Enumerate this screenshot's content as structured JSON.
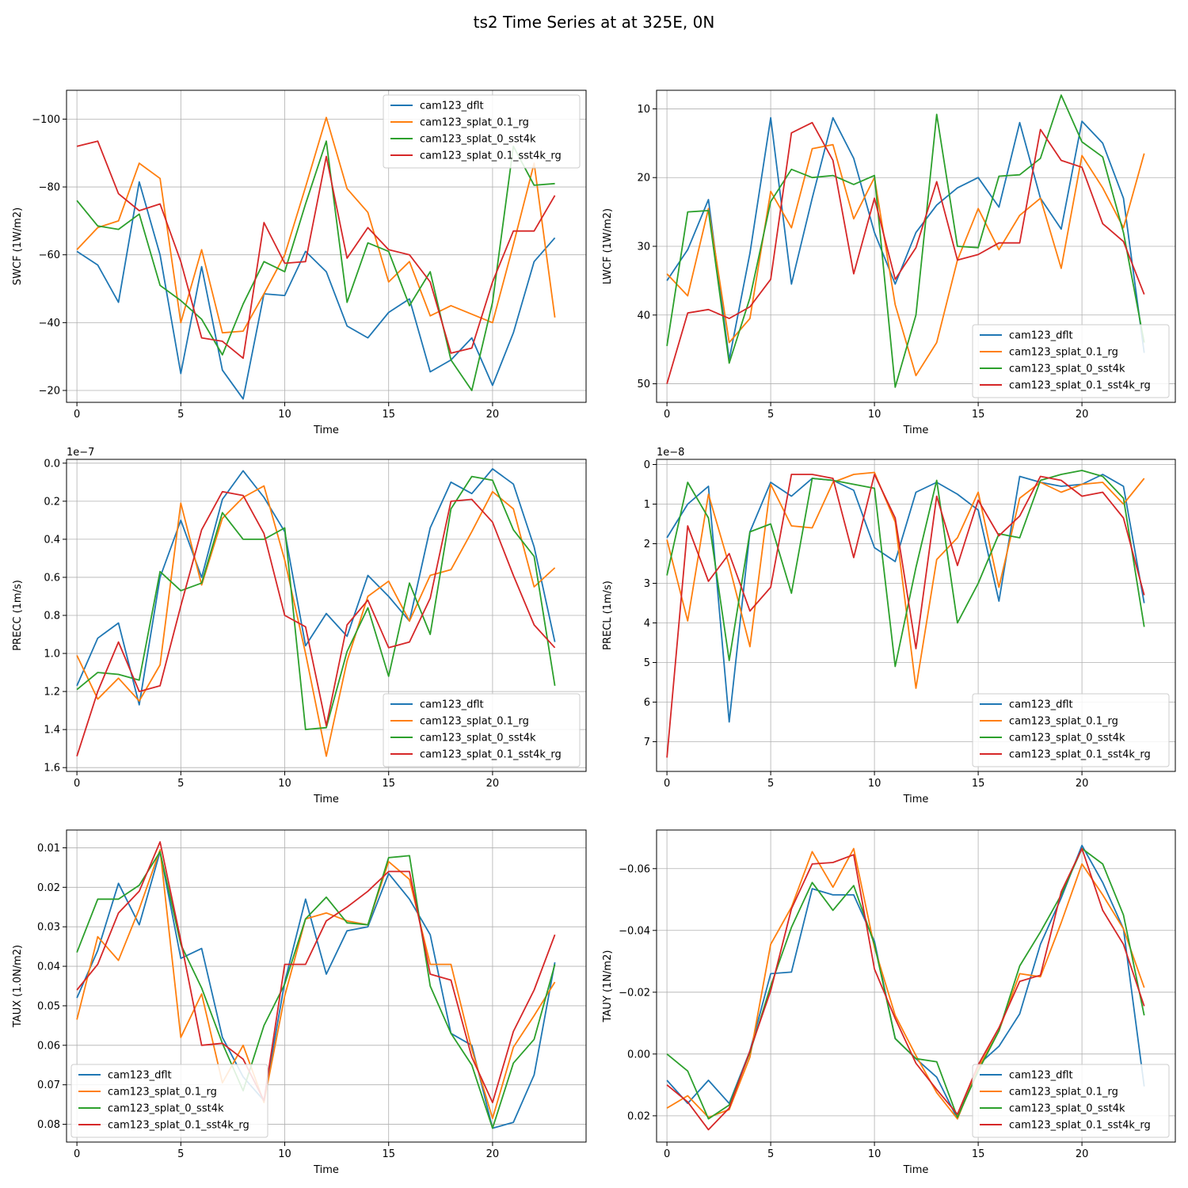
{
  "title": "ts2 Time Series at at 325E, 0N",
  "legend_labels": [
    "cam123_dflt",
    "cam123_splat_0.1_rg",
    "cam123_splat_0_sst4k",
    "cam123_splat_0.1_sst4k_rg"
  ],
  "colors": [
    "#1f77b4",
    "#ff7f0e",
    "#2ca02c",
    "#d62728"
  ],
  "chart_data": [
    {
      "type": "line",
      "xlabel": "Time",
      "ylabel": "SWCF (1W/m2)",
      "xlim": [
        -0.5,
        24.5
      ],
      "ylim": [
        -16.5,
        -108.5
      ],
      "inverted_y": true,
      "multiplier": "",
      "xticks": [
        0,
        5,
        10,
        15,
        20
      ],
      "yticks": [
        -100,
        -80,
        -60,
        -40,
        -20
      ],
      "yticklabels": [
        "−100",
        "−80",
        "−60",
        "−40",
        "−20"
      ],
      "grid": true,
      "legend_position": "upper right",
      "x": [
        0,
        1,
        2,
        3,
        4,
        5,
        6,
        7,
        8,
        9,
        10,
        11,
        12,
        13,
        14,
        15,
        16,
        17,
        18,
        19,
        20,
        21,
        22,
        23
      ],
      "series": [
        {
          "name": "cam123_dflt",
          "values": [
            -61,
            -57,
            -46,
            -81.5,
            -60,
            -25,
            -56.5,
            -26,
            -17.5,
            -48.5,
            -48,
            -61,
            -55,
            -39,
            -35.5,
            -43,
            -47,
            -25.5,
            -29,
            -35.5,
            -21.5,
            -37,
            -58,
            -65
          ]
        },
        {
          "name": "cam123_splat_0.1_rg",
          "values": [
            -61.5,
            -68,
            -70,
            -87,
            -82.5,
            -40,
            -61.5,
            -37,
            -37.5,
            -48.5,
            -60,
            -80,
            -100.5,
            -79.5,
            -72.5,
            -52,
            -58,
            -42,
            -45,
            -42.5,
            -40,
            -63,
            -87,
            -41.5
          ]
        },
        {
          "name": "cam123_splat_0_sst4k",
          "values": [
            -76,
            -68.5,
            -67.5,
            -72,
            -51,
            -46.5,
            -41,
            -30.5,
            -45.5,
            -58,
            -55,
            -75,
            -93.5,
            -46,
            -63.5,
            -61,
            -45,
            -55,
            -29,
            -20,
            -46,
            -92,
            -80.5,
            -81
          ]
        },
        {
          "name": "cam123_splat_0.1_sst4k_rg",
          "values": [
            -92,
            -93.5,
            -78,
            -73,
            -75,
            -58,
            -35.5,
            -34.5,
            -29.5,
            -69.5,
            -57.5,
            -58,
            -89,
            -59,
            -68,
            -61.5,
            -60,
            -52,
            -31,
            -32.5,
            -52,
            -67,
            -67,
            -77.5
          ]
        }
      ]
    },
    {
      "type": "line",
      "xlabel": "Time",
      "ylabel": "LWCF (1W/m2)",
      "xlim": [
        -0.5,
        24.5
      ],
      "ylim": [
        52.7,
        7.3
      ],
      "inverted_y": true,
      "multiplier": "",
      "xticks": [
        0,
        5,
        10,
        15,
        20
      ],
      "yticks": [
        10,
        20,
        30,
        40,
        50
      ],
      "yticklabels": [
        "10",
        "20",
        "30",
        "40",
        "50"
      ],
      "grid": true,
      "legend_position": "lower right",
      "x": [
        0,
        1,
        2,
        3,
        4,
        5,
        6,
        7,
        8,
        9,
        10,
        11,
        12,
        13,
        14,
        15,
        16,
        17,
        18,
        19,
        20,
        21,
        22,
        23
      ],
      "series": [
        {
          "name": "cam123_dflt",
          "values": [
            35,
            30.5,
            23.2,
            46.5,
            31,
            11.3,
            35.5,
            23,
            11.3,
            17.2,
            28,
            35.5,
            28,
            24,
            21.5,
            20,
            24.3,
            12,
            23,
            27.5,
            11.8,
            15,
            23,
            45.5
          ]
        },
        {
          "name": "cam123_splat_0.1_rg",
          "values": [
            34,
            37.2,
            24.5,
            44,
            40.5,
            22,
            27.3,
            15.8,
            15.2,
            26,
            20,
            38.5,
            48.8,
            44,
            32,
            24.5,
            30.5,
            25.5,
            23,
            33.2,
            16.8,
            21.5,
            27.3,
            16.5
          ]
        },
        {
          "name": "cam123_splat_0_sst4k",
          "values": [
            44.5,
            25,
            24.8,
            47,
            37.5,
            23.5,
            18.8,
            20,
            19.7,
            21,
            19.7,
            50.5,
            40,
            10.8,
            30,
            30.2,
            19.8,
            19.6,
            17.2,
            8,
            14.8,
            17,
            28,
            44
          ]
        },
        {
          "name": "cam123_splat_0.1_sst4k_rg",
          "values": [
            50,
            39.7,
            39.2,
            40.5,
            38.8,
            34.8,
            13.5,
            12,
            17.5,
            34,
            23,
            34.8,
            30.2,
            20.6,
            32,
            31.2,
            29.5,
            29.5,
            13,
            17.5,
            18.5,
            26.7,
            29.3,
            37
          ]
        }
      ]
    },
    {
      "type": "line",
      "xlabel": "Time",
      "ylabel": "PRECC (1m/s)",
      "xlim": [
        -0.5,
        24.5
      ],
      "ylim": [
        1.62,
        -0.02
      ],
      "inverted_y": true,
      "multiplier": "1e−7",
      "xticks": [
        0,
        5,
        10,
        15,
        20
      ],
      "yticks": [
        0,
        0.2,
        0.4,
        0.6,
        0.8,
        1.0,
        1.2,
        1.4,
        1.6
      ],
      "yticklabels": [
        "0.0",
        "0.2",
        "0.4",
        "0.6",
        "0.8",
        "1.0",
        "1.2",
        "1.4",
        "1.6"
      ],
      "grid": true,
      "legend_position": "lower right",
      "x": [
        0,
        1,
        2,
        3,
        4,
        5,
        6,
        7,
        8,
        9,
        10,
        11,
        12,
        13,
        14,
        15,
        16,
        17,
        18,
        19,
        20,
        21,
        22,
        23
      ],
      "series": [
        {
          "name": "cam123_dflt",
          "values": [
            1.17,
            0.92,
            0.84,
            1.27,
            0.6,
            0.3,
            0.6,
            0.19,
            0.04,
            0.18,
            0.36,
            0.96,
            0.79,
            0.91,
            0.59,
            0.7,
            0.83,
            0.34,
            0.1,
            0.16,
            0.03,
            0.11,
            0.44,
            0.94
          ]
        },
        {
          "name": "cam123_splat_0.1_rg",
          "values": [
            1.01,
            1.24,
            1.13,
            1.25,
            1.06,
            0.21,
            0.64,
            0.29,
            0.18,
            0.12,
            0.51,
            1.0,
            1.54,
            1.04,
            0.7,
            0.62,
            0.83,
            0.59,
            0.56,
            0.36,
            0.15,
            0.24,
            0.65,
            0.55
          ]
        },
        {
          "name": "cam123_splat_0_sst4k",
          "values": [
            1.19,
            1.1,
            1.11,
            1.14,
            0.57,
            0.67,
            0.63,
            0.26,
            0.4,
            0.4,
            0.34,
            1.4,
            1.39,
            0.99,
            0.76,
            1.12,
            0.63,
            0.9,
            0.24,
            0.07,
            0.09,
            0.35,
            0.49,
            1.17
          ]
        },
        {
          "name": "cam123_splat_0.1_sst4k_rg",
          "values": [
            1.54,
            1.2,
            0.94,
            1.2,
            1.17,
            0.75,
            0.35,
            0.15,
            0.17,
            0.37,
            0.8,
            0.86,
            1.38,
            0.85,
            0.72,
            0.97,
            0.94,
            0.71,
            0.2,
            0.19,
            0.31,
            0.59,
            0.85,
            0.97
          ]
        }
      ]
    },
    {
      "type": "line",
      "xlabel": "Time",
      "ylabel": "PRECL (1m/s)",
      "xlim": [
        -0.5,
        24.5
      ],
      "ylim": [
        7.75,
        -0.13
      ],
      "inverted_y": true,
      "multiplier": "1e−8",
      "xticks": [
        0,
        5,
        10,
        15,
        20
      ],
      "yticks": [
        0,
        1,
        2,
        3,
        4,
        5,
        6,
        7
      ],
      "yticklabels": [
        "0",
        "1",
        "2",
        "3",
        "4",
        "5",
        "6",
        "7"
      ],
      "grid": true,
      "legend_position": "lower right",
      "x": [
        0,
        1,
        2,
        3,
        4,
        5,
        6,
        7,
        8,
        9,
        10,
        11,
        12,
        13,
        14,
        15,
        16,
        17,
        18,
        19,
        20,
        21,
        22,
        23
      ],
      "series": [
        {
          "name": "cam123_dflt",
          "values": [
            1.85,
            1.0,
            0.55,
            6.5,
            1.7,
            0.45,
            0.8,
            0.35,
            0.4,
            0.65,
            2.1,
            2.45,
            0.7,
            0.45,
            0.75,
            1.15,
            3.45,
            0.3,
            0.45,
            0.55,
            0.5,
            0.25,
            0.55,
            3.5
          ]
        },
        {
          "name": "cam123_splat_0.1_rg",
          "values": [
            1.9,
            3.95,
            0.75,
            2.55,
            4.6,
            0.5,
            1.55,
            1.6,
            0.45,
            0.25,
            0.2,
            1.45,
            5.65,
            2.4,
            1.85,
            0.7,
            3.1,
            0.85,
            0.45,
            0.7,
            0.5,
            0.45,
            1.0,
            0.35
          ]
        },
        {
          "name": "cam123_splat_0_sst4k",
          "values": [
            2.8,
            0.45,
            1.35,
            4.95,
            1.7,
            1.5,
            3.25,
            0.35,
            0.4,
            0.5,
            0.6,
            5.1,
            2.6,
            0.4,
            4.0,
            3.0,
            1.75,
            1.85,
            0.4,
            0.25,
            0.15,
            0.3,
            0.85,
            4.1
          ]
        },
        {
          "name": "cam123_splat_0.1_sst4k_rg",
          "values": [
            7.4,
            1.55,
            2.95,
            2.25,
            3.7,
            3.1,
            0.25,
            0.25,
            0.35,
            2.35,
            0.25,
            1.35,
            4.65,
            0.8,
            2.55,
            0.9,
            1.8,
            1.3,
            0.3,
            0.4,
            0.8,
            0.7,
            1.35,
            3.3
          ]
        }
      ]
    },
    {
      "type": "line",
      "xlabel": "Time",
      "ylabel": "TAUX (1.0N/m2)",
      "xlim": [
        -0.5,
        24.5
      ],
      "ylim": [
        0.0845,
        0.0055
      ],
      "inverted_y": true,
      "multiplier": "",
      "xticks": [
        0,
        5,
        10,
        15,
        20
      ],
      "yticks": [
        0.01,
        0.02,
        0.03,
        0.04,
        0.05,
        0.06,
        0.07,
        0.08
      ],
      "yticklabels": [
        "0.01",
        "0.02",
        "0.03",
        "0.04",
        "0.05",
        "0.06",
        "0.07",
        "0.08"
      ],
      "grid": true,
      "legend_position": "lower left",
      "x": [
        0,
        1,
        2,
        3,
        4,
        5,
        6,
        7,
        8,
        9,
        10,
        11,
        12,
        13,
        14,
        15,
        16,
        17,
        18,
        19,
        20,
        21,
        22,
        23
      ],
      "series": [
        {
          "name": "cam123_dflt",
          "values": [
            0.048,
            0.036,
            0.019,
            0.0295,
            0.011,
            0.038,
            0.0355,
            0.058,
            0.068,
            0.074,
            0.044,
            0.023,
            0.042,
            0.031,
            0.03,
            0.0165,
            0.023,
            0.032,
            0.057,
            0.06,
            0.081,
            0.0795,
            0.0675,
            0.039
          ]
        },
        {
          "name": "cam123_splat_0.1_rg",
          "values": [
            0.0535,
            0.0325,
            0.0385,
            0.0255,
            0.0105,
            0.058,
            0.047,
            0.0695,
            0.06,
            0.0745,
            0.0475,
            0.028,
            0.0265,
            0.0285,
            0.0295,
            0.0135,
            0.018,
            0.0395,
            0.0395,
            0.061,
            0.0785,
            0.0605,
            0.0525,
            0.044
          ]
        },
        {
          "name": "cam123_splat_0_sst4k",
          "values": [
            0.0365,
            0.023,
            0.023,
            0.0195,
            0.011,
            0.0345,
            0.0455,
            0.0595,
            0.0715,
            0.055,
            0.0445,
            0.028,
            0.0225,
            0.029,
            0.0295,
            0.0125,
            0.012,
            0.045,
            0.057,
            0.065,
            0.081,
            0.0645,
            0.0585,
            0.0395
          ]
        },
        {
          "name": "cam123_splat_0.1_sst4k_rg",
          "values": [
            0.046,
            0.0395,
            0.0265,
            0.021,
            0.0085,
            0.0335,
            0.06,
            0.0595,
            0.0635,
            0.074,
            0.0395,
            0.0395,
            0.0285,
            0.025,
            0.021,
            0.016,
            0.016,
            0.042,
            0.0435,
            0.063,
            0.0745,
            0.0565,
            0.046,
            0.032
          ]
        }
      ]
    },
    {
      "type": "line",
      "xlabel": "Time",
      "ylabel": "TAUY (1N/m2)",
      "xlim": [
        -0.5,
        24.5
      ],
      "ylim": [
        0.0285,
        -0.0725
      ],
      "inverted_y": true,
      "multiplier": "",
      "xticks": [
        0,
        5,
        10,
        15,
        20
      ],
      "yticks": [
        -0.06,
        -0.04,
        -0.02,
        0.0,
        0.02
      ],
      "yticklabels": [
        "−0.06",
        "−0.04",
        "−0.02",
        "0.00",
        "0.02"
      ],
      "grid": true,
      "legend_position": "lower right",
      "x": [
        0,
        1,
        2,
        3,
        4,
        5,
        6,
        7,
        8,
        9,
        10,
        11,
        12,
        13,
        14,
        15,
        16,
        17,
        18,
        19,
        20,
        21,
        22,
        23
      ],
      "series": [
        {
          "name": "cam123_dflt",
          "values": [
            0.0085,
            0.016,
            0.0085,
            0.016,
            -0.001,
            -0.026,
            -0.0265,
            -0.0535,
            -0.0515,
            -0.0515,
            -0.0365,
            -0.005,
            0.0015,
            0.0075,
            0.021,
            0.0035,
            -0.0025,
            -0.013,
            -0.0355,
            -0.0505,
            -0.0675,
            -0.0555,
            -0.0405,
            0.0105
          ]
        },
        {
          "name": "cam123_splat_0.1_rg",
          "values": [
            0.0175,
            0.0135,
            0.0205,
            0.018,
            0.001,
            -0.0355,
            -0.0475,
            -0.0655,
            -0.054,
            -0.0665,
            -0.0345,
            -0.0125,
            0.0005,
            0.0125,
            0.021,
            0.0045,
            -0.0075,
            -0.026,
            -0.025,
            -0.0425,
            -0.0615,
            -0.0515,
            -0.0405,
            -0.0215
          ]
        },
        {
          "name": "cam123_splat_0_sst4k",
          "values": [
            0,
            0.0055,
            0.021,
            0.0165,
            -0.0005,
            -0.022,
            -0.041,
            -0.0555,
            -0.0465,
            -0.0545,
            -0.0355,
            -0.005,
            0.0015,
            0.0025,
            0.0205,
            0.0055,
            -0.0075,
            -0.0285,
            -0.0395,
            -0.0515,
            -0.0665,
            -0.0615,
            -0.045,
            -0.0125
          ]
        },
        {
          "name": "cam123_splat_0.1_sst4k_rg",
          "values": [
            0.01,
            0.0155,
            0.0245,
            0.0175,
            -0.001,
            -0.0205,
            -0.047,
            -0.0615,
            -0.062,
            -0.0645,
            -0.0275,
            -0.0115,
            0.003,
            0.0115,
            0.0195,
            0.0035,
            -0.0085,
            -0.0235,
            -0.0255,
            -0.0525,
            -0.0665,
            -0.0465,
            -0.0355,
            -0.0155
          ]
        }
      ]
    }
  ]
}
